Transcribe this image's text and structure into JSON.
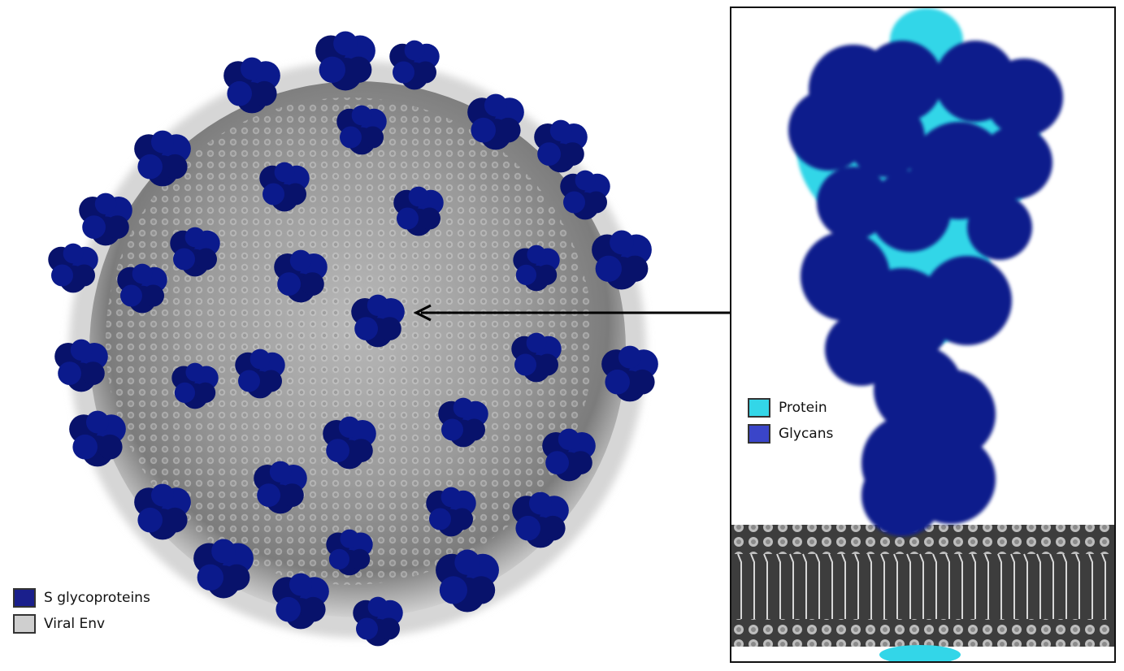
{
  "legend_left": {
    "items": [
      {
        "label": "S glycoproteins",
        "color": "#1a1f8c"
      },
      {
        "label": "Viral Env",
        "color": "#cfcfcf"
      }
    ]
  },
  "legend_right": {
    "items": [
      {
        "label": "Protein",
        "color": "#33d6e8"
      },
      {
        "label": "Glycans",
        "color": "#3a45c9"
      }
    ]
  },
  "colors": {
    "spike": "#0b1a8c",
    "spike_dark": "#08126b",
    "envelope": "#9a9a9a",
    "membrane": "#6a6a6a",
    "protein": "#33d6e8"
  },
  "icons": [
    "virion-illustration",
    "spike-protein-render",
    "lipid-membrane",
    "pointer-arrow"
  ]
}
